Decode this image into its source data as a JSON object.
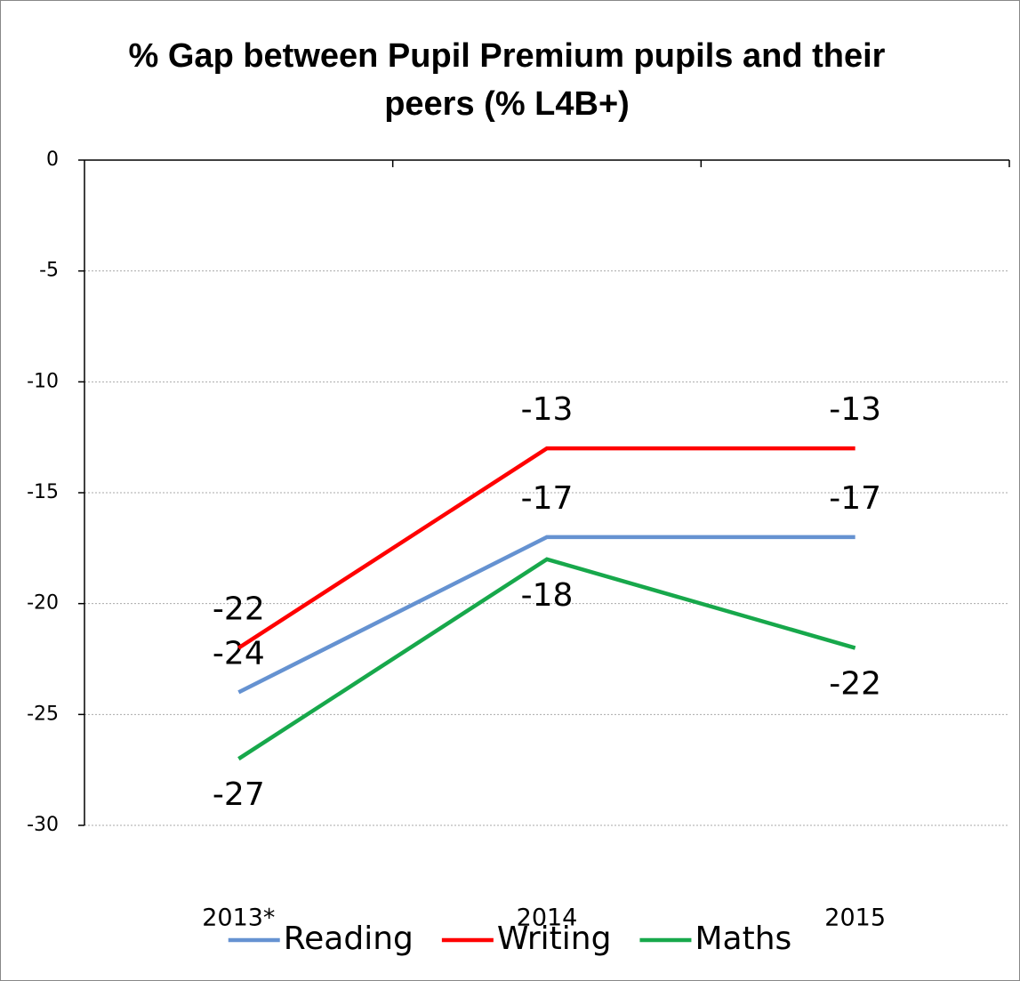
{
  "chart_data": {
    "type": "line",
    "title": "% Gap between Pupil Premium pupils and their peers (% L4B+)",
    "categories": [
      "2013*",
      "2014",
      "2015"
    ],
    "series": [
      {
        "name": "Reading",
        "color": "#6592d1",
        "values": [
          -24,
          -17,
          -17
        ]
      },
      {
        "name": "Writing",
        "color": "#ff0000",
        "values": [
          -22,
          -13,
          -13
        ]
      },
      {
        "name": "Maths",
        "color": "#17a84b",
        "values": [
          -27,
          -18,
          -22
        ]
      }
    ],
    "ylim": [
      -30,
      0
    ],
    "yticks": [
      -30,
      -25,
      -20,
      -15,
      -10,
      -5,
      0
    ],
    "grid": true,
    "legend": "bottom"
  }
}
